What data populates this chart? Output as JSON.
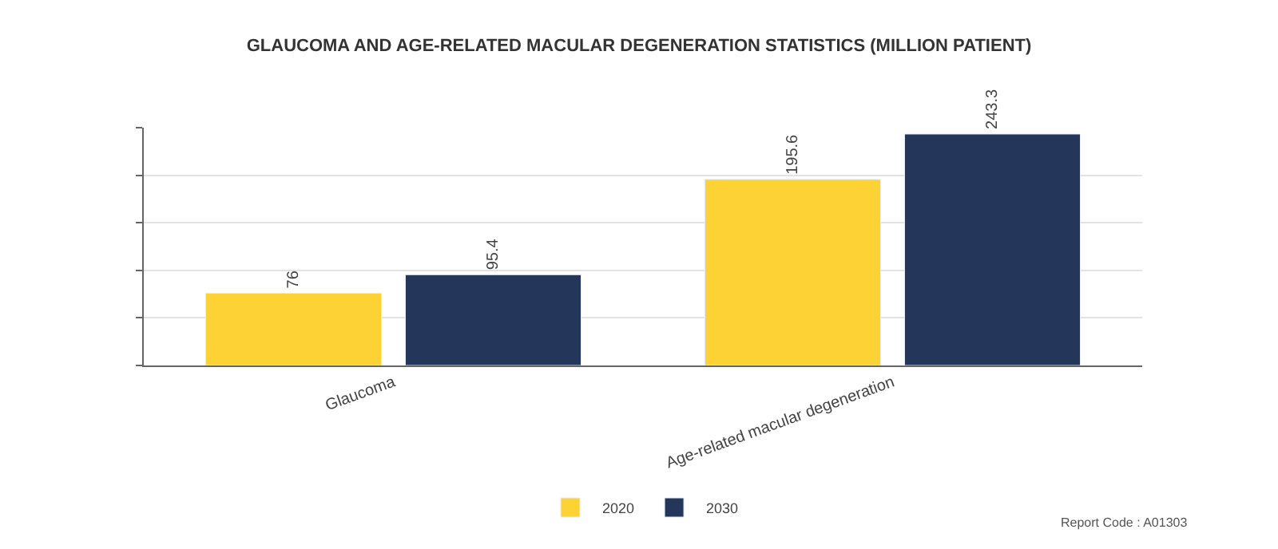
{
  "chart_data": {
    "type": "bar",
    "title": "GLAUCOMA AND AGE-RELATED MACULAR DEGENERATION STATISTICS (MILLION PATIENT)",
    "categories": [
      "Glaucoma",
      "Age-related macular degeneration"
    ],
    "series": [
      {
        "name": "2020",
        "color": "#fdd235",
        "values": [
          76,
          195.6
        ]
      },
      {
        "name": "2030",
        "color": "#24375a",
        "values": [
          95.4,
          243.3
        ]
      }
    ],
    "ylim": [
      0,
      250
    ],
    "yticks": [
      {
        "value": 0,
        "label": null
      },
      {
        "value": 50,
        "label": null
      },
      {
        "value": 100,
        "label": null
      },
      {
        "value": 150,
        "label": null
      },
      {
        "value": 200,
        "label": null
      },
      {
        "value": 250,
        "label": null
      }
    ],
    "grid": "y",
    "legend": "bottom",
    "data_labels": true,
    "annotations": [
      "Report Code : A01303"
    ]
  }
}
